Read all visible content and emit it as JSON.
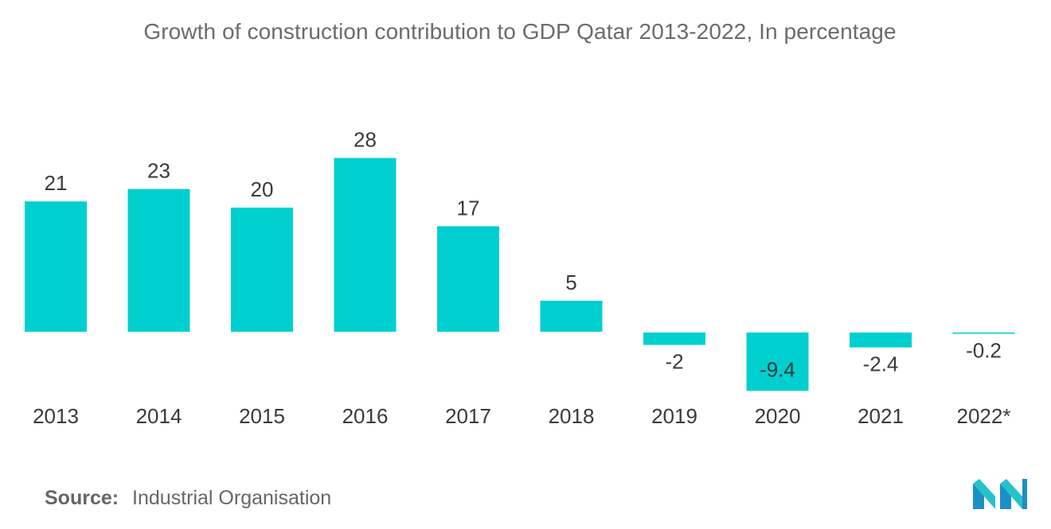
{
  "title": "Growth of construction contribution to GDP Qatar 2013-2022, In percentage",
  "source": {
    "label": "Source:",
    "value": "Industrial Organisation"
  },
  "logo": {
    "icon": "mordor-intelligence-logo",
    "colors": [
      "#1b8fc7",
      "#27c2c9"
    ]
  },
  "chart_data": {
    "type": "bar",
    "categories": [
      "2013",
      "2014",
      "2015",
      "2016",
      "2017",
      "2018",
      "2019",
      "2020",
      "2021",
      "2022*"
    ],
    "values": [
      21,
      23,
      20,
      28,
      17,
      5,
      -2,
      -9.4,
      -2.4,
      -0.2
    ],
    "value_labels": [
      "21",
      "23",
      "20",
      "28",
      "17",
      "5",
      "-2",
      "-9.4",
      "-2.4",
      "-0.2"
    ],
    "title": "Growth of construction contribution to GDP Qatar 2013-2022, In percentage",
    "xlabel": "",
    "ylabel": "",
    "grid": false,
    "legend": "none",
    "bar_color": "#00cfcf"
  }
}
